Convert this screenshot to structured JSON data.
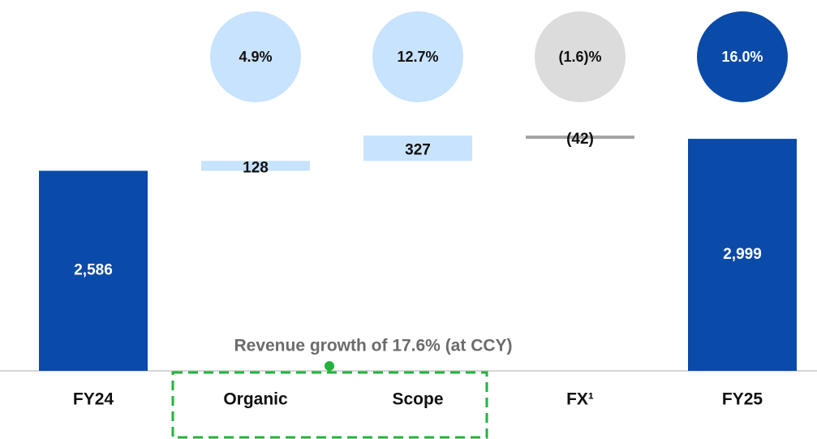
{
  "chart_data": {
    "type": "waterfall",
    "categories": [
      "FY24",
      "Organic",
      "Scope",
      "FX¹",
      "FY25"
    ],
    "values": [
      2586,
      128,
      327,
      -42,
      2999
    ],
    "value_labels": [
      "2,586",
      "128",
      "327",
      "(42)",
      "2,999"
    ],
    "measure": [
      "total",
      "increase",
      "increase",
      "decrease",
      "total"
    ],
    "colors": {
      "total": "#0a4aa8",
      "increase": "#c7e3fd",
      "decrease": "#a3a3a3"
    },
    "growth": {
      "values": [
        null,
        4.9,
        12.7,
        -1.6,
        16.0
      ],
      "value_labels": [
        null,
        "4.9%",
        "12.7%",
        "(1.6)%",
        "16.0%"
      ],
      "colors": [
        null,
        "#c7e3fd",
        "#c7e3fd",
        "#dcdcdc",
        "#0a4aa8"
      ]
    },
    "annotation": "Revenue growth of 17.6% (at CCY)",
    "ylim": [
      0,
      3000
    ]
  }
}
